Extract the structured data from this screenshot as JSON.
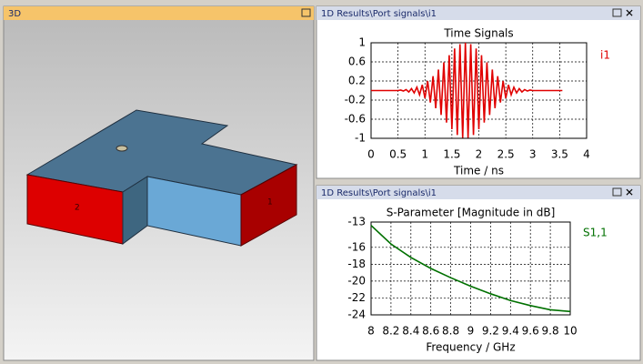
{
  "panels": {
    "view3d": {
      "title": "3D",
      "port_labels": [
        "2",
        "1"
      ]
    },
    "plot1": {
      "title": "1D Results\\Port signals\\i1"
    },
    "plot2": {
      "title": "1D Results\\Port signals\\i1"
    }
  },
  "chart_data": [
    {
      "type": "line",
      "title": "Time Signals",
      "x_label": "Time / ns",
      "xlim": [
        0,
        4
      ],
      "xticks": [
        0,
        0.5,
        1,
        1.5,
        2,
        2.5,
        3,
        3.5,
        4
      ],
      "ylim": [
        -1,
        1
      ],
      "yticks": [
        -1,
        -0.6,
        -0.2,
        0.2,
        0.6,
        1
      ],
      "grid": true,
      "x": [
        0,
        0.05,
        0.1,
        0.15,
        0.2,
        0.25,
        0.3,
        0.35,
        0.4,
        0.45,
        0.5,
        0.55,
        0.6,
        0.65,
        0.7,
        0.75,
        0.8,
        0.85,
        0.9,
        0.95,
        1,
        1.05,
        1.1,
        1.15,
        1.2,
        1.25,
        1.3,
        1.35,
        1.4,
        1.45,
        1.5,
        1.55,
        1.6,
        1.65,
        1.7,
        1.75,
        1.8,
        1.85,
        1.9,
        1.95,
        2,
        2.05,
        2.1,
        2.15,
        2.2,
        2.25,
        2.3,
        2.35,
        2.4,
        2.45,
        2.5,
        2.55,
        2.6,
        2.65,
        2.7,
        2.75,
        2.8,
        2.85,
        2.9,
        2.95,
        3,
        3.05,
        3.1,
        3.15,
        3.2,
        3.25,
        3.3,
        3.35,
        3.4,
        3.45,
        3.5,
        3.55
      ],
      "series": [
        {
          "name": "i1",
          "color": "#e00000",
          "values": [
            0,
            0,
            0,
            0,
            0,
            0,
            0,
            0,
            0,
            0,
            0,
            0.01,
            -0.01,
            0.02,
            -0.03,
            0.04,
            -0.05,
            0.07,
            -0.09,
            0.12,
            -0.16,
            0.2,
            -0.25,
            0.3,
            -0.37,
            0.44,
            -0.51,
            0.59,
            -0.67,
            0.74,
            -0.81,
            0.88,
            -0.93,
            0.97,
            -0.99,
            1,
            -0.99,
            0.97,
            -0.93,
            0.88,
            -0.81,
            0.74,
            -0.67,
            0.59,
            -0.51,
            0.44,
            -0.37,
            0.3,
            -0.25,
            0.2,
            -0.16,
            0.12,
            -0.09,
            0.07,
            -0.05,
            0.04,
            -0.03,
            0.02,
            -0.01,
            0.01,
            0,
            0,
            0,
            0,
            0,
            0,
            0,
            0,
            0,
            0,
            0,
            0
          ]
        }
      ]
    },
    {
      "type": "line",
      "title": "S-Parameter [Magnitude in dB]",
      "x_label": "Frequency / GHz",
      "xlim": [
        8,
        10
      ],
      "xticks": [
        8,
        8.2,
        8.4,
        8.6,
        8.8,
        9,
        9.2,
        9.4,
        9.6,
        9.8,
        10
      ],
      "ylim": [
        -24,
        -13
      ],
      "yticks": [
        -13,
        -16,
        -18,
        -20,
        -22,
        -24
      ],
      "grid": true,
      "x": [
        8,
        8.2,
        8.4,
        8.6,
        8.8,
        9,
        9.2,
        9.4,
        9.6,
        9.8,
        10
      ],
      "series": [
        {
          "name": "S1,1",
          "color": "#007000",
          "values": [
            -13.4,
            -15.6,
            -17.2,
            -18.5,
            -19.6,
            -20.6,
            -21.5,
            -22.3,
            -22.9,
            -23.4,
            -23.6
          ]
        }
      ]
    }
  ]
}
